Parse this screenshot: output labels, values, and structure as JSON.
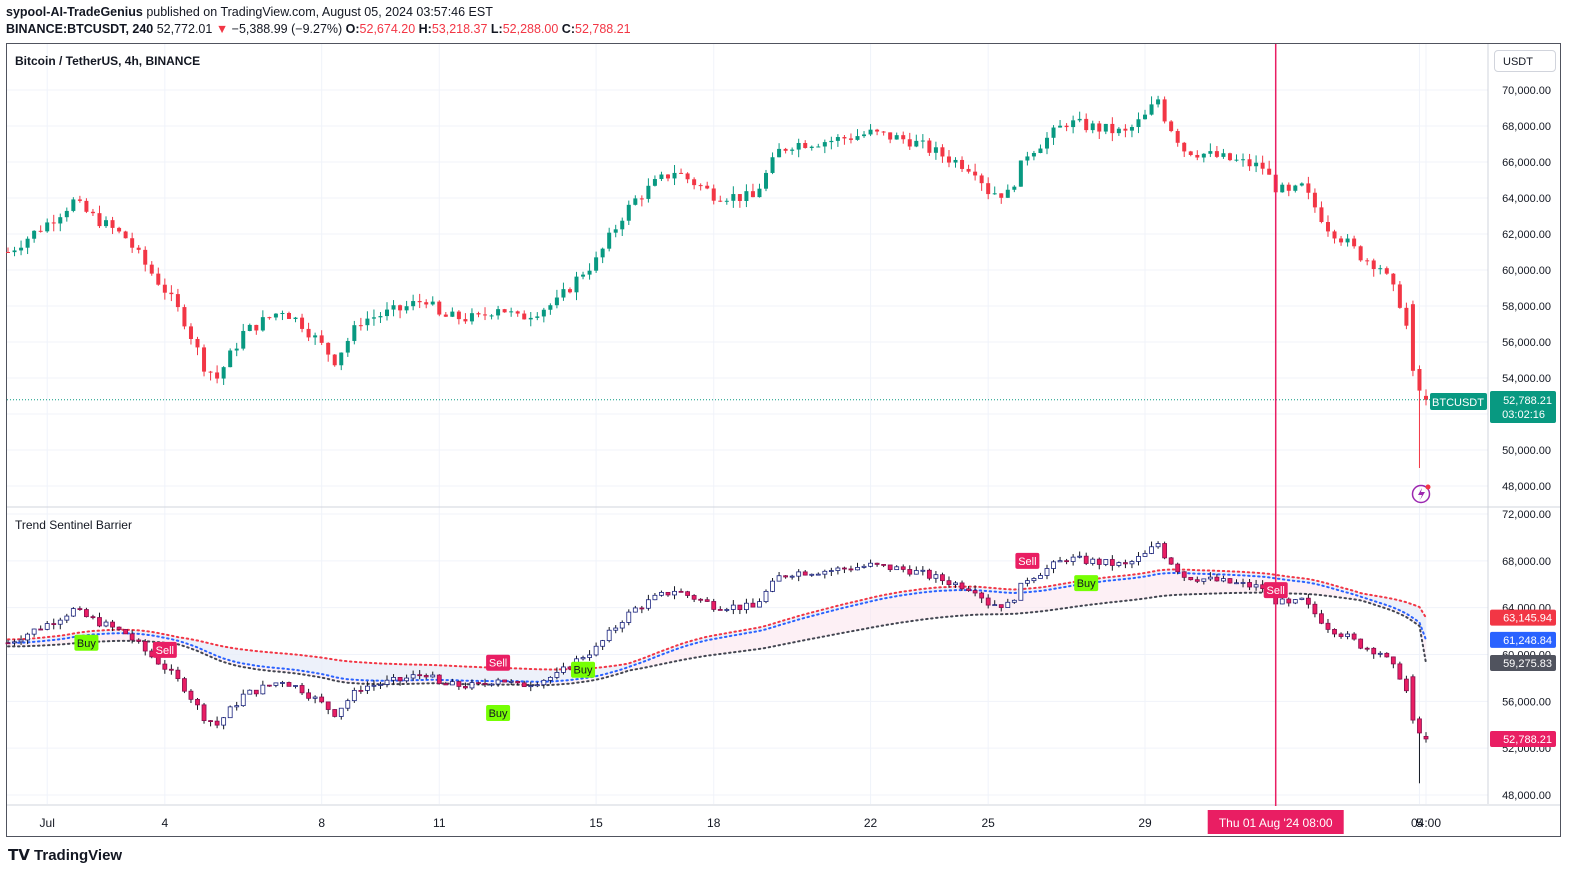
{
  "header": {
    "author": "sypool-AI-TradeGenius",
    "published_text": " published on TradingView.com, August 05, 2024 03:57:46 EST",
    "symbol": "BINANCE:BTCUSDT, 240",
    "last": " 52,772.01",
    "change_arrow": "▼",
    "change": " −5,388.99 (−9.27%) ",
    "open_label": "O:",
    "open_value": "52,674.20",
    "high_label": " H:",
    "high_value": "53,218.37",
    "low_label": " L:",
    "low_value": "52,288.00",
    "close_label": " C:",
    "close_value": "52,788.21"
  },
  "main_pane": {
    "title": "Bitcoin / TetherUS, 4h, BINANCE",
    "currency_button": "USDT",
    "price_label_name": "BTCUSDT",
    "price_label_value": "52,788.21",
    "countdown": "03:02:16"
  },
  "indicator_pane": {
    "title": "Trend Sentinel Barrier",
    "band_labels": [
      {
        "value": "63,145.94",
        "color": "#f23645"
      },
      {
        "value": "61,248.84",
        "color": "#2962ff"
      },
      {
        "value": "59,275.83",
        "color": "#50535e"
      },
      {
        "value": "52,788.21",
        "color": "#e91e63"
      }
    ]
  },
  "time_axis": {
    "labels": [
      "Jul",
      "4",
      "8",
      "11",
      "15",
      "18",
      "22",
      "25",
      "29",
      "5",
      "04:00"
    ],
    "crosshair_label": "Thu 01 Aug '24   08:00"
  },
  "footer": {
    "logo_text": "TradingView"
  },
  "colors": {
    "up": "#089981",
    "down": "#f23645",
    "crosshair": "#e91e63",
    "buy": "#76ff03",
    "sell": "#e91e63"
  },
  "chart_data": [
    {
      "type": "candlestick",
      "title": "Bitcoin / TetherUS, 4h, BINANCE",
      "y_axis": [
        48000,
        50000,
        52000,
        54000,
        56000,
        58000,
        60000,
        62000,
        64000,
        66000,
        68000,
        70000
      ],
      "y_tick_labels": [
        "48,000.00",
        "50,000.00",
        "52,000.00",
        "54,000.00",
        "56,000.00",
        "58,000.00",
        "60,000.00",
        "62,000.00",
        "64,000.00",
        "66,000.00",
        "68,000.00",
        "70,000.00"
      ],
      "ylim": [
        47000,
        71500
      ],
      "close_path": [
        [
          "06-30",
          61000
        ],
        [
          "07-01",
          62600
        ],
        [
          "07-01 16:00",
          63800
        ],
        [
          "07-02",
          63200
        ],
        [
          "07-03",
          61800
        ],
        [
          "07-03 12:00",
          60300
        ],
        [
          "07-04",
          58900
        ],
        [
          "07-04 12:00",
          57200
        ],
        [
          "07-05",
          54700
        ],
        [
          "07-05 08:00",
          54000
        ],
        [
          "07-06",
          56500
        ],
        [
          "07-07",
          57800
        ],
        [
          "07-07 12:00",
          57000
        ],
        [
          "07-08",
          55800
        ],
        [
          "07-08 08:00",
          55000
        ],
        [
          "07-09",
          57200
        ],
        [
          "07-10",
          57800
        ],
        [
          "07-10 16:00",
          58400
        ],
        [
          "07-11",
          57400
        ],
        [
          "07-12",
          57300
        ],
        [
          "07-12 12:00",
          58000
        ],
        [
          "07-13",
          57300
        ],
        [
          "07-14",
          58200
        ],
        [
          "07-14 16:00",
          59900
        ],
        [
          "07-15",
          60500
        ],
        [
          "07-15 16:00",
          63000
        ],
        [
          "07-16",
          63900
        ],
        [
          "07-16 12:00",
          64800
        ],
        [
          "07-17",
          65500
        ],
        [
          "07-18",
          64200
        ],
        [
          "07-19",
          64000
        ],
        [
          "07-19 16:00",
          66600
        ],
        [
          "07-20",
          67000
        ],
        [
          "07-21",
          67200
        ],
        [
          "07-22",
          67600
        ],
        [
          "07-23",
          67200
        ],
        [
          "07-24",
          66200
        ],
        [
          "07-24 16:00",
          65600
        ],
        [
          "07-25",
          64400
        ],
        [
          "07-25 12:00",
          64200
        ],
        [
          "07-26",
          66500
        ],
        [
          "07-26 12:00",
          67300
        ],
        [
          "07-27",
          68200
        ],
        [
          "07-28",
          67800
        ],
        [
          "07-28 12:00",
          67600
        ],
        [
          "07-29",
          68500
        ],
        [
          "07-29 08:00",
          69500
        ],
        [
          "07-29 12:00",
          68500
        ],
        [
          "07-30",
          66700
        ],
        [
          "07-31",
          66200
        ],
        [
          "08-01",
          65700
        ],
        [
          "08-01 08:00",
          64600
        ],
        [
          "08-01 16:00",
          64200
        ],
        [
          "08-02",
          64600
        ],
        [
          "08-02 16:00",
          62400
        ],
        [
          "08-03",
          61800
        ],
        [
          "08-03 12:00",
          60800
        ],
        [
          "08-04",
          60200
        ],
        [
          "08-04 12:00",
          58200
        ],
        [
          "08-04 20:00",
          55500
        ],
        [
          "08-05",
          53000
        ],
        [
          "08-05 04:00",
          52788
        ]
      ],
      "last_price": 52788.21,
      "crosshair": "Thu 01 Aug '24 08:00"
    },
    {
      "type": "candlestick",
      "title": "Trend Sentinel Barrier",
      "y_axis": [
        48000,
        52000,
        56000,
        60000,
        64000,
        68000,
        72000
      ],
      "y_tick_labels": [
        "48,000.00",
        "52,000.00",
        "56,000.00",
        "60,000.00",
        "64,000.00",
        "68,000.00",
        "72,000.00"
      ],
      "ylim": [
        47000,
        72000
      ],
      "series": [
        {
          "name": "upper",
          "last": 63145.94
        },
        {
          "name": "middle",
          "last": 61248.84
        },
        {
          "name": "lower",
          "last": 59275.83
        }
      ],
      "signals": [
        {
          "label": "Buy",
          "date": "07-02",
          "price": 61000
        },
        {
          "label": "Sell",
          "date": "07-04",
          "price": 60400
        },
        {
          "label": "Sell",
          "date": "07-12 12:00",
          "price": 59300
        },
        {
          "label": "Buy",
          "date": "07-12 12:00",
          "price": 55000
        },
        {
          "label": "Buy",
          "date": "07-14 16:00",
          "price": 58700
        },
        {
          "label": "Sell",
          "date": "07-26",
          "price": 68000
        },
        {
          "label": "Buy",
          "date": "07-27 12:00",
          "price": 66100
        },
        {
          "label": "Sell",
          "date": "08-01 08:00",
          "price": 65500
        }
      ]
    }
  ]
}
